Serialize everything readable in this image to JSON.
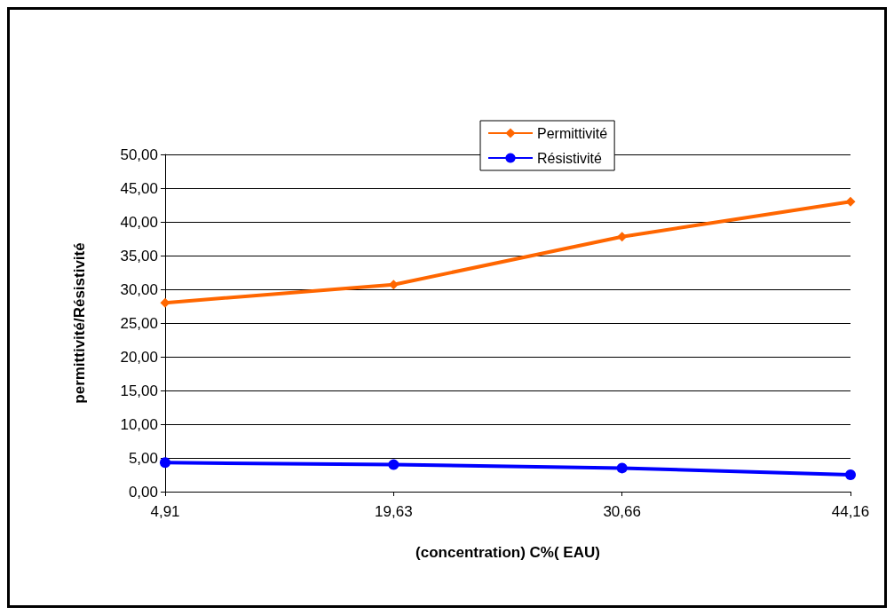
{
  "chart_data": {
    "type": "line",
    "xlabel": "(concentration) C%( EAU)",
    "ylabel": "permittivité/Résistivité",
    "categories": [
      "4,91",
      "19,63",
      "30,66",
      "44,16"
    ],
    "series": [
      {
        "name": "Permittivité",
        "color": "#ff6600",
        "marker": "diamond",
        "values": [
          28.0,
          30.7,
          37.8,
          43.0
        ]
      },
      {
        "name": "Résistivité",
        "color": "#0000ff",
        "marker": "circle",
        "values": [
          4.3,
          4.0,
          3.5,
          2.5
        ]
      }
    ],
    "ylim": [
      0,
      50
    ],
    "yticks": [
      {
        "value": 0,
        "label": "0,00"
      },
      {
        "value": 5,
        "label": "5,00"
      },
      {
        "value": 10,
        "label": "10,00"
      },
      {
        "value": 15,
        "label": "15,00"
      },
      {
        "value": 20,
        "label": "20,00"
      },
      {
        "value": 25,
        "label": "25,00"
      },
      {
        "value": 30,
        "label": "30,00"
      },
      {
        "value": 35,
        "label": "35,00"
      },
      {
        "value": 40,
        "label": "40,00"
      },
      {
        "value": 45,
        "label": "45,00"
      },
      {
        "value": 50,
        "label": "50,00"
      }
    ],
    "grid": "y",
    "legend": "top"
  }
}
